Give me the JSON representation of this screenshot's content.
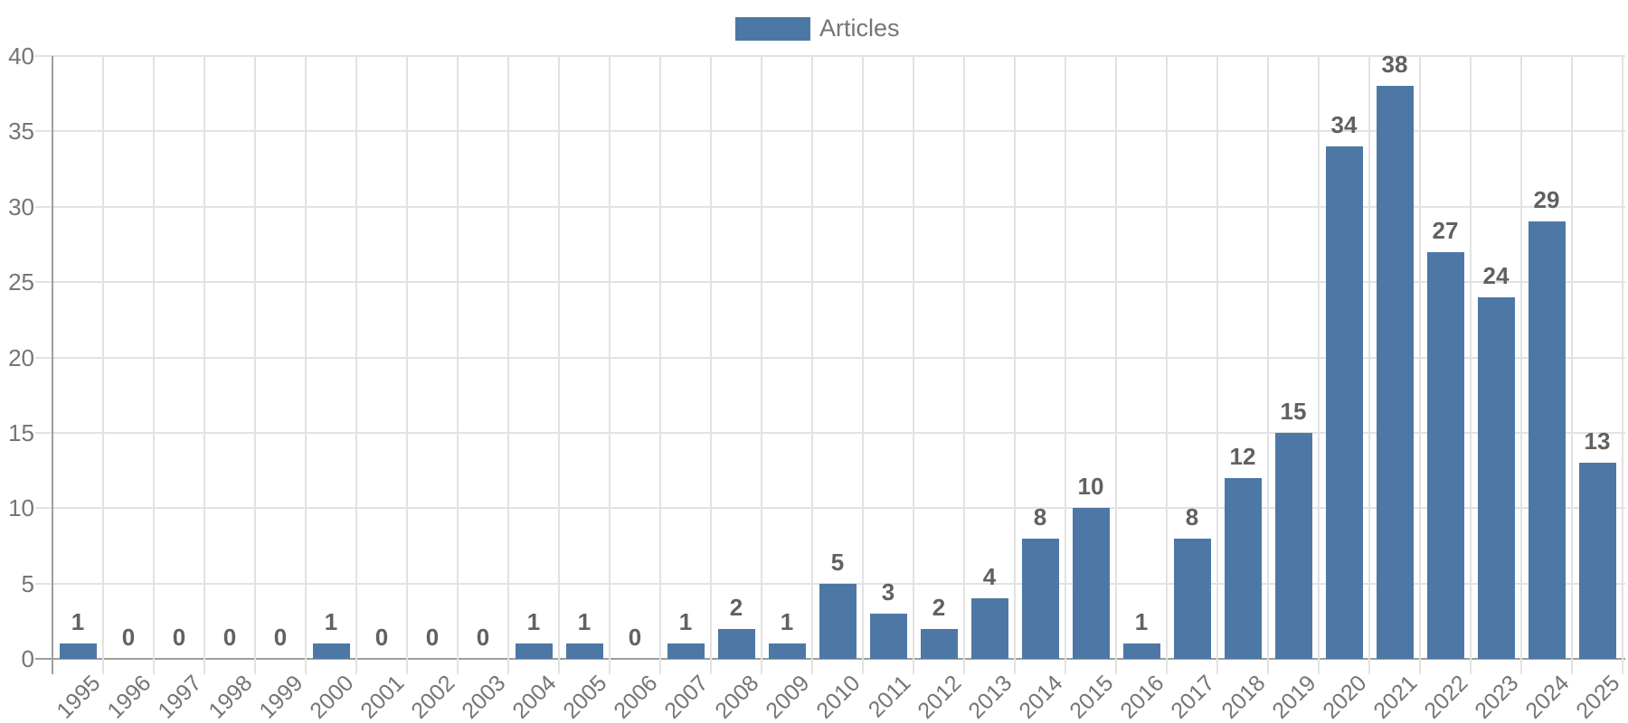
{
  "chart_data": {
    "type": "bar",
    "title": "",
    "legend": {
      "label": "Articles",
      "position": "top-center"
    },
    "categories": [
      "1995",
      "1996",
      "1997",
      "1998",
      "1999",
      "2000",
      "2001",
      "2002",
      "2003",
      "2004",
      "2005",
      "2006",
      "2007",
      "2008",
      "2009",
      "2010",
      "2011",
      "2012",
      "2013",
      "2014",
      "2015",
      "2016",
      "2017",
      "2018",
      "2019",
      "2020",
      "2021",
      "2022",
      "2023",
      "2024",
      "2025"
    ],
    "values": [
      1,
      0,
      0,
      0,
      0,
      1,
      0,
      0,
      0,
      1,
      1,
      0,
      1,
      2,
      1,
      5,
      3,
      2,
      4,
      8,
      10,
      1,
      8,
      12,
      15,
      34,
      38,
      27,
      24,
      29,
      13
    ],
    "value_labels_shown": true,
    "xlabel": "",
    "ylabel": "",
    "ylim": [
      0,
      40
    ],
    "yticks": [
      0,
      5,
      10,
      15,
      20,
      25,
      30,
      35,
      40
    ],
    "grid": true,
    "colors": {
      "bar": "#4d78a5",
      "grid": "#e2e2e2",
      "axis": "#9e9e9e",
      "tick_label": "#757575",
      "value_label": "#616161"
    }
  }
}
